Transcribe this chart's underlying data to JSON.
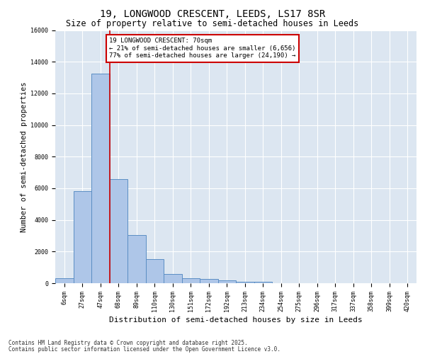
{
  "title_line1": "19, LONGWOOD CRESCENT, LEEDS, LS17 8SR",
  "title_line2": "Size of property relative to semi-detached houses in Leeds",
  "xlabel": "Distribution of semi-detached houses by size in Leeds",
  "ylabel": "Number of semi-detached properties",
  "categories": [
    "6sqm",
    "27sqm",
    "47sqm",
    "68sqm",
    "89sqm",
    "110sqm",
    "130sqm",
    "151sqm",
    "172sqm",
    "192sqm",
    "213sqm",
    "234sqm",
    "254sqm",
    "275sqm",
    "296sqm",
    "317sqm",
    "337sqm",
    "358sqm",
    "399sqm",
    "420sqm"
  ],
  "values": [
    300,
    5800,
    13250,
    6600,
    3050,
    1500,
    600,
    310,
    260,
    160,
    110,
    80,
    0,
    0,
    0,
    0,
    0,
    0,
    0,
    0
  ],
  "bar_color": "#aec6e8",
  "bar_edge_color": "#5b8ec4",
  "background_color": "#dce6f1",
  "grid_color": "#ffffff",
  "red_line_bar_index": 3,
  "annotation_text": "19 LONGWOOD CRESCENT: 70sqm\n← 21% of semi-detached houses are smaller (6,656)\n77% of semi-detached houses are larger (24,190) →",
  "annotation_box_color": "#ffffff",
  "annotation_box_edge": "#cc0000",
  "red_line_color": "#cc0000",
  "ylim": [
    0,
    16000
  ],
  "yticks": [
    0,
    2000,
    4000,
    6000,
    8000,
    10000,
    12000,
    14000,
    16000
  ],
  "footer_line1": "Contains HM Land Registry data © Crown copyright and database right 2025.",
  "footer_line2": "Contains public sector information licensed under the Open Government Licence v3.0.",
  "title_fontsize": 10,
  "subtitle_fontsize": 8.5,
  "tick_fontsize": 6,
  "ylabel_fontsize": 7.5,
  "xlabel_fontsize": 8,
  "annotation_fontsize": 6.5,
  "footer_fontsize": 5.5
}
